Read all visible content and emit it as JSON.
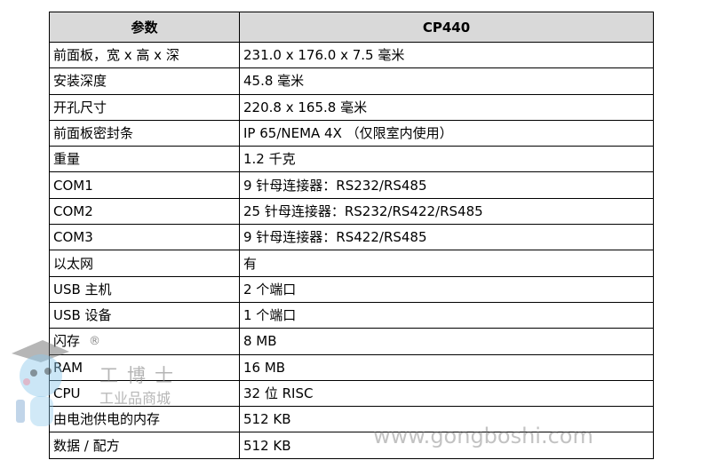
{
  "table": {
    "headers": [
      "参数",
      "CP440"
    ],
    "rows": [
      [
        "前面板，宽 x 高 x 深",
        "231.0 x 176.0 x 7.5 毫米"
      ],
      [
        "安装深度",
        "45.8 毫米"
      ],
      [
        "开孔尺寸",
        "220.8 x 165.8 毫米"
      ],
      [
        "前面板密封条",
        "IP 65/NEMA 4X （仅限室内使用）"
      ],
      [
        "重量",
        "1.2 千克"
      ],
      [
        "COM1",
        "9 针母连接器：RS232/RS485"
      ],
      [
        "COM2",
        "25 针母连接器：RS232/RS422/RS485"
      ],
      [
        "COM3",
        "9 针母连接器：RS422/RS485"
      ],
      [
        "以太网",
        "有"
      ],
      [
        "USB 主机",
        "2 个端口"
      ],
      [
        "USB 设备",
        "1 个端口"
      ],
      [
        "闪存",
        "8 MB"
      ],
      [
        "RAM",
        "16 MB"
      ],
      [
        "CPU",
        "32 位 RISC"
      ],
      [
        "由电池供电的内存",
        "512 KB"
      ],
      [
        "数据 / 配方",
        "512 KB"
      ]
    ]
  },
  "watermark": {
    "brand": "工博士",
    "subtitle": "工业品商城",
    "site": "www.gongboshi.com",
    "registered": "®"
  }
}
